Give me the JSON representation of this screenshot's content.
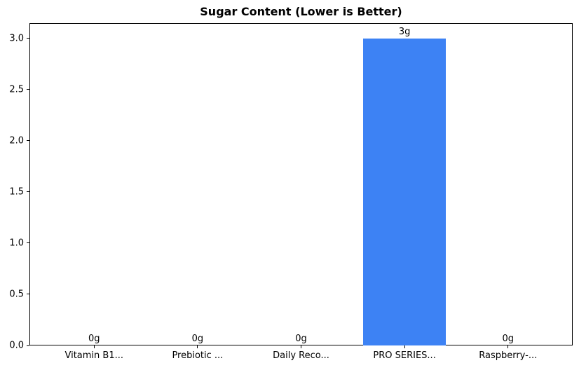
{
  "chart_data": {
    "type": "bar",
    "title": "Sugar Content (Lower is Better)",
    "categories": [
      "Vitamin B1...",
      "Prebiotic ...",
      "Daily Reco...",
      "PRO SERIES...",
      "Raspberry-..."
    ],
    "values": [
      0,
      0,
      0,
      3,
      0
    ],
    "value_labels": [
      "0g",
      "0g",
      "0g",
      "3g",
      "0g"
    ],
    "yticks": [
      0.0,
      0.5,
      1.0,
      1.5,
      2.0,
      2.5,
      3.0
    ],
    "ytick_labels": [
      "0.0",
      "0.5",
      "1.0",
      "1.5",
      "2.0",
      "2.5",
      "3.0"
    ],
    "ylim": [
      0,
      3.15
    ],
    "xlabel": "",
    "ylabel": "",
    "bar_color": "#3d82f4",
    "bar_width_units": 0.8,
    "grid": false,
    "legend": null,
    "background_color": "#ffffff",
    "spine_color": "#000000",
    "text_color": "#000000"
  }
}
